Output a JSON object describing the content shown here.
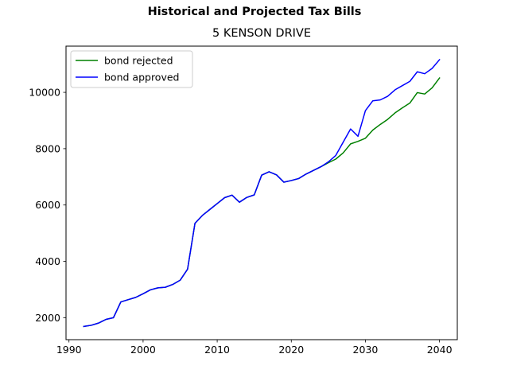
{
  "chart_data": {
    "type": "line",
    "suptitle": "Historical and Projected Tax Bills",
    "title": "5 KENSON DRIVE",
    "xlabel": "",
    "ylabel": "",
    "xlim": [
      1989.6,
      2042.4
    ],
    "ylim": [
      1220,
      11640
    ],
    "xticks": [
      1990,
      2000,
      2010,
      2020,
      2030,
      2040
    ],
    "yticks": [
      2000,
      4000,
      6000,
      8000,
      10000
    ],
    "legend_position": "upper-left",
    "grid": false,
    "series": [
      {
        "name": "bond rejected",
        "color": "#008000",
        "x": [
          1992,
          1993,
          1994,
          1995,
          1996,
          1997,
          1998,
          1999,
          2000,
          2001,
          2002,
          2003,
          2004,
          2005,
          2006,
          2007,
          2008,
          2009,
          2010,
          2011,
          2012,
          2013,
          2014,
          2015,
          2016,
          2017,
          2018,
          2019,
          2020,
          2021,
          2022,
          2023,
          2024,
          2025,
          2026,
          2027,
          2028,
          2029,
          2030,
          2031,
          2032,
          2033,
          2034,
          2035,
          2036,
          2037,
          2038,
          2039,
          2040
        ],
        "y": [
          1690,
          1730,
          1810,
          1940,
          2000,
          2560,
          2640,
          2720,
          2850,
          2990,
          3060,
          3080,
          3180,
          3330,
          3720,
          5350,
          5630,
          5840,
          6050,
          6260,
          6350,
          6100,
          6270,
          6360,
          7060,
          7180,
          7070,
          6810,
          6870,
          6940,
          7100,
          7230,
          7360,
          7500,
          7630,
          7850,
          8170,
          8260,
          8370,
          8660,
          8860,
          9040,
          9270,
          9450,
          9620,
          9990,
          9940,
          10160,
          10510
        ]
      },
      {
        "name": "bond approved",
        "color": "#0000ff",
        "x": [
          1992,
          1993,
          1994,
          1995,
          1996,
          1997,
          1998,
          1999,
          2000,
          2001,
          2002,
          2003,
          2004,
          2005,
          2006,
          2007,
          2008,
          2009,
          2010,
          2011,
          2012,
          2013,
          2014,
          2015,
          2016,
          2017,
          2018,
          2019,
          2020,
          2021,
          2022,
          2023,
          2024,
          2025,
          2026,
          2027,
          2028,
          2029,
          2030,
          2031,
          2032,
          2033,
          2034,
          2035,
          2036,
          2037,
          2038,
          2039,
          2040
        ],
        "y": [
          1690,
          1730,
          1810,
          1940,
          2000,
          2560,
          2640,
          2720,
          2850,
          2990,
          3060,
          3080,
          3180,
          3330,
          3720,
          5350,
          5630,
          5840,
          6050,
          6260,
          6350,
          6100,
          6270,
          6360,
          7060,
          7180,
          7070,
          6810,
          6870,
          6940,
          7100,
          7230,
          7360,
          7530,
          7760,
          8230,
          8700,
          8440,
          9350,
          9700,
          9730,
          9860,
          10090,
          10240,
          10390,
          10730,
          10660,
          10850,
          11160
        ]
      }
    ]
  }
}
